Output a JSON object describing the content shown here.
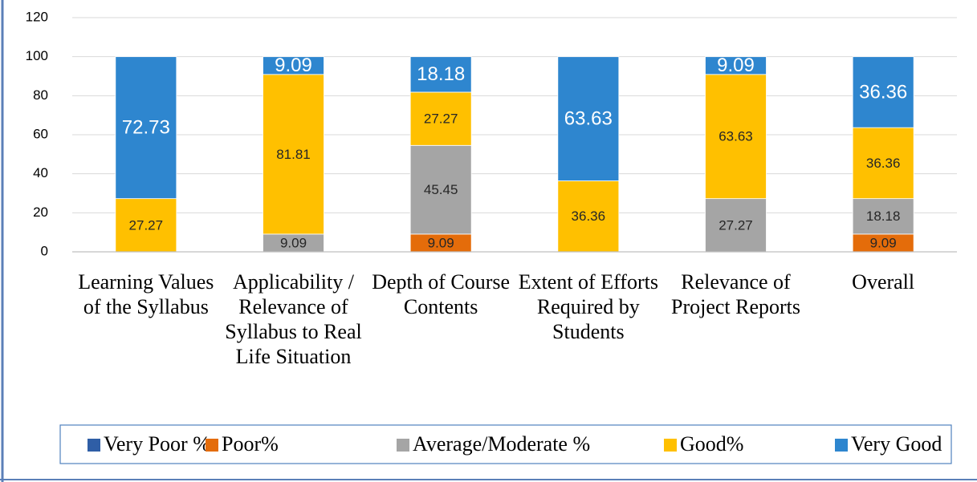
{
  "chart_data": {
    "type": "stacked_bar",
    "categories": [
      "Learning Values of the Syllabus",
      "Applicability / Relevance of Syllabus to Real Life Situation",
      "Depth of Course Contents",
      "Extent of Efforts Required by Students",
      "Relevance of Project Reports",
      "Overall"
    ],
    "series": [
      {
        "name": "Very Poor %",
        "color": "#2f5ea6",
        "values": [
          null,
          null,
          null,
          null,
          null,
          null
        ]
      },
      {
        "name": "Poor%",
        "color": "#e46c0a",
        "values": [
          null,
          null,
          9.09,
          null,
          null,
          9.09
        ]
      },
      {
        "name": "Average/Moderate %",
        "color": "#a5a5a5",
        "values": [
          null,
          9.09,
          45.45,
          null,
          27.27,
          18.18
        ]
      },
      {
        "name": "Good%",
        "color": "#ffc000",
        "values": [
          27.27,
          81.81,
          27.27,
          36.36,
          63.63,
          36.36
        ]
      },
      {
        "name": "Very Good",
        "color": "#2e86cf",
        "values": [
          72.73,
          9.09,
          18.18,
          63.63,
          9.09,
          36.36
        ]
      }
    ],
    "ylim": [
      0,
      120
    ],
    "yticks": [
      0,
      20,
      40,
      60,
      80,
      100,
      120
    ],
    "grid": true,
    "legend": "bottom"
  }
}
